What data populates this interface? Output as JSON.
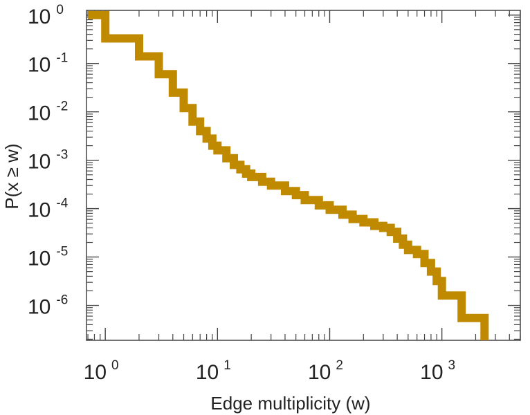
{
  "chart_data": {
    "type": "line",
    "xscale": "log",
    "yscale": "log",
    "xlabel": "Edge multiplicity (w)",
    "ylabel": "P(x ≥ w)",
    "xlim": [
      0.68,
      5000
    ],
    "ylim": [
      1.9e-07,
      1.25
    ],
    "x_ticks": [
      {
        "value": 1,
        "base": "10",
        "exp": "0"
      },
      {
        "value": 10,
        "base": "10",
        "exp": "1"
      },
      {
        "value": 100,
        "base": "10",
        "exp": "2"
      },
      {
        "value": 1000,
        "base": "10",
        "exp": "3"
      }
    ],
    "y_ticks": [
      {
        "value": 1,
        "base": "10",
        "exp": "0"
      },
      {
        "value": 0.1,
        "base": "10",
        "exp": "-1"
      },
      {
        "value": 0.01,
        "base": "10",
        "exp": "-2"
      },
      {
        "value": 0.001,
        "base": "10",
        "exp": "-3"
      },
      {
        "value": 0.0001,
        "base": "10",
        "exp": "-4"
      },
      {
        "value": 1e-05,
        "base": "10",
        "exp": "-5"
      },
      {
        "value": 1e-06,
        "base": "10",
        "exp": "-6"
      }
    ],
    "color": "#c08a00",
    "series": [
      {
        "name": "",
        "step": true,
        "x": [
          0.7,
          1,
          2,
          3,
          4,
          5,
          6,
          7,
          8,
          9,
          10,
          12,
          14,
          16,
          18,
          20,
          25,
          30,
          40,
          50,
          60,
          80,
          100,
          130,
          160,
          200,
          250,
          300,
          350,
          400,
          450,
          500,
          600,
          700,
          800,
          900,
          1000,
          1500,
          2300,
          2400
        ],
        "y": [
          1.0,
          0.33,
          0.14,
          0.06,
          0.025,
          0.012,
          0.0063,
          0.004,
          0.0028,
          0.002,
          0.0016,
          0.0011,
          0.0008,
          0.00065,
          0.00053,
          0.00045,
          0.00036,
          0.0003,
          0.00023,
          0.00019,
          0.00015,
          0.000117,
          9.5e-05,
          7.5e-05,
          6.1e-05,
          5.2e-05,
          4.4e-05,
          4e-05,
          3.3e-05,
          2.4e-05,
          1.8e-05,
          1.4e-05,
          1.15e-05,
          7.5e-06,
          5e-06,
          3.2e-06,
          1.6e-06,
          5.5e-07,
          5.5e-07,
          1.9e-07
        ]
      }
    ]
  }
}
